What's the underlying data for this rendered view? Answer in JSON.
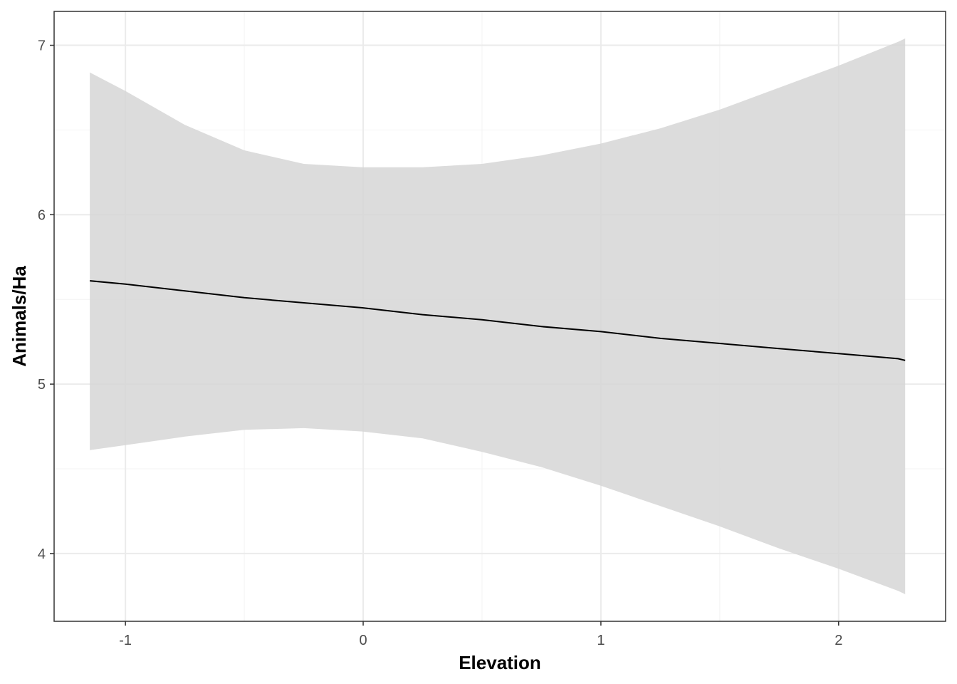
{
  "chart_data": {
    "type": "line",
    "title": "",
    "xlabel": "Elevation",
    "ylabel": "Animals/Ha",
    "xlim": [
      -1.3,
      2.45
    ],
    "ylim": [
      3.6,
      7.2
    ],
    "x_ticks": [
      -1,
      0,
      1,
      2
    ],
    "x_tick_labels": [
      "-1",
      "0",
      "1",
      "2"
    ],
    "x_minor_ticks": [
      -0.5,
      0.5,
      1.5
    ],
    "y_ticks": [
      4,
      5,
      6,
      7
    ],
    "y_tick_labels": [
      "4",
      "5",
      "6",
      "7"
    ],
    "y_minor_ticks": [
      4.5,
      5.5,
      6.5
    ],
    "grid": true,
    "series": [
      {
        "x": [
          -1.15,
          -1.0,
          -0.75,
          -0.5,
          -0.25,
          0.0,
          0.25,
          0.5,
          0.75,
          1.0,
          1.25,
          1.5,
          1.75,
          2.0,
          2.25,
          2.28
        ],
        "values": [
          5.61,
          5.59,
          5.55,
          5.51,
          5.48,
          5.45,
          5.41,
          5.38,
          5.34,
          5.31,
          5.27,
          5.24,
          5.21,
          5.18,
          5.15,
          5.14
        ],
        "lower": [
          4.61,
          4.64,
          4.69,
          4.73,
          4.74,
          4.72,
          4.68,
          4.6,
          4.51,
          4.4,
          4.28,
          4.16,
          4.03,
          3.91,
          3.78,
          3.76
        ],
        "upper": [
          6.84,
          6.73,
          6.53,
          6.38,
          6.3,
          6.28,
          6.28,
          6.3,
          6.35,
          6.42,
          6.51,
          6.62,
          6.75,
          6.88,
          7.02,
          7.04
        ]
      }
    ],
    "colors": {
      "line": "#000000",
      "ribbon": "#d6d6d6",
      "grid_major": "#ebebeb",
      "grid_minor": "#f5f5f5",
      "panel_border": "#333333",
      "tick_text": "#4d4d4d",
      "axis_title": "#000000"
    }
  }
}
